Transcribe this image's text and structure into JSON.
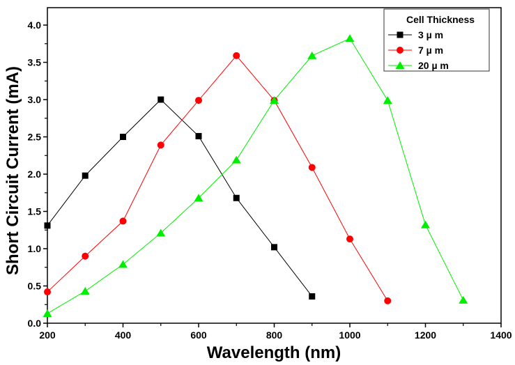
{
  "chart_data": {
    "type": "line",
    "title": "",
    "xlabel": "Wavelength (nm)",
    "ylabel": "Short Circuit Current  (mA)",
    "xlim": [
      200,
      1400
    ],
    "ylim": [
      0.0,
      4.25
    ],
    "xticks": [
      200,
      400,
      600,
      800,
      1000,
      1200,
      1400
    ],
    "xtick_labels": [
      "200",
      "400",
      "600",
      "800",
      "1000",
      "1200",
      "1400"
    ],
    "yticks": [
      0.0,
      0.5,
      1.0,
      1.5,
      2.0,
      2.5,
      3.0,
      3.5,
      4.0
    ],
    "ytick_labels": [
      "0.0",
      "0.5",
      "1.0",
      "1.5",
      "2.0",
      "2.5",
      "3.0",
      "3.5",
      "4.0"
    ],
    "grid": false,
    "legend": {
      "title": "Cell Thickness",
      "placement": "top-right"
    },
    "series": [
      {
        "name": "3 µ m",
        "color": "#000000",
        "marker": "square",
        "x": [
          200,
          300,
          400,
          500,
          600,
          700,
          800,
          900
        ],
        "y": [
          1.31,
          1.98,
          2.5,
          3.0,
          2.51,
          1.68,
          1.02,
          0.36
        ]
      },
      {
        "name": "7 µ m",
        "color": "#ff0000",
        "marker": "circle",
        "x": [
          200,
          300,
          400,
          500,
          600,
          700,
          800,
          900,
          1000,
          1100
        ],
        "y": [
          0.42,
          0.9,
          1.37,
          2.39,
          2.99,
          3.59,
          2.99,
          2.09,
          1.13,
          0.3
        ]
      },
      {
        "name": "20 µ m",
        "color": "#00ee00",
        "marker": "triangle",
        "x": [
          200,
          300,
          400,
          500,
          600,
          700,
          800,
          900,
          1000,
          1100,
          1200,
          1300
        ],
        "y": [
          0.13,
          0.43,
          0.79,
          1.21,
          1.68,
          2.19,
          2.99,
          3.59,
          3.82,
          2.99,
          1.32,
          0.31
        ]
      }
    ]
  }
}
